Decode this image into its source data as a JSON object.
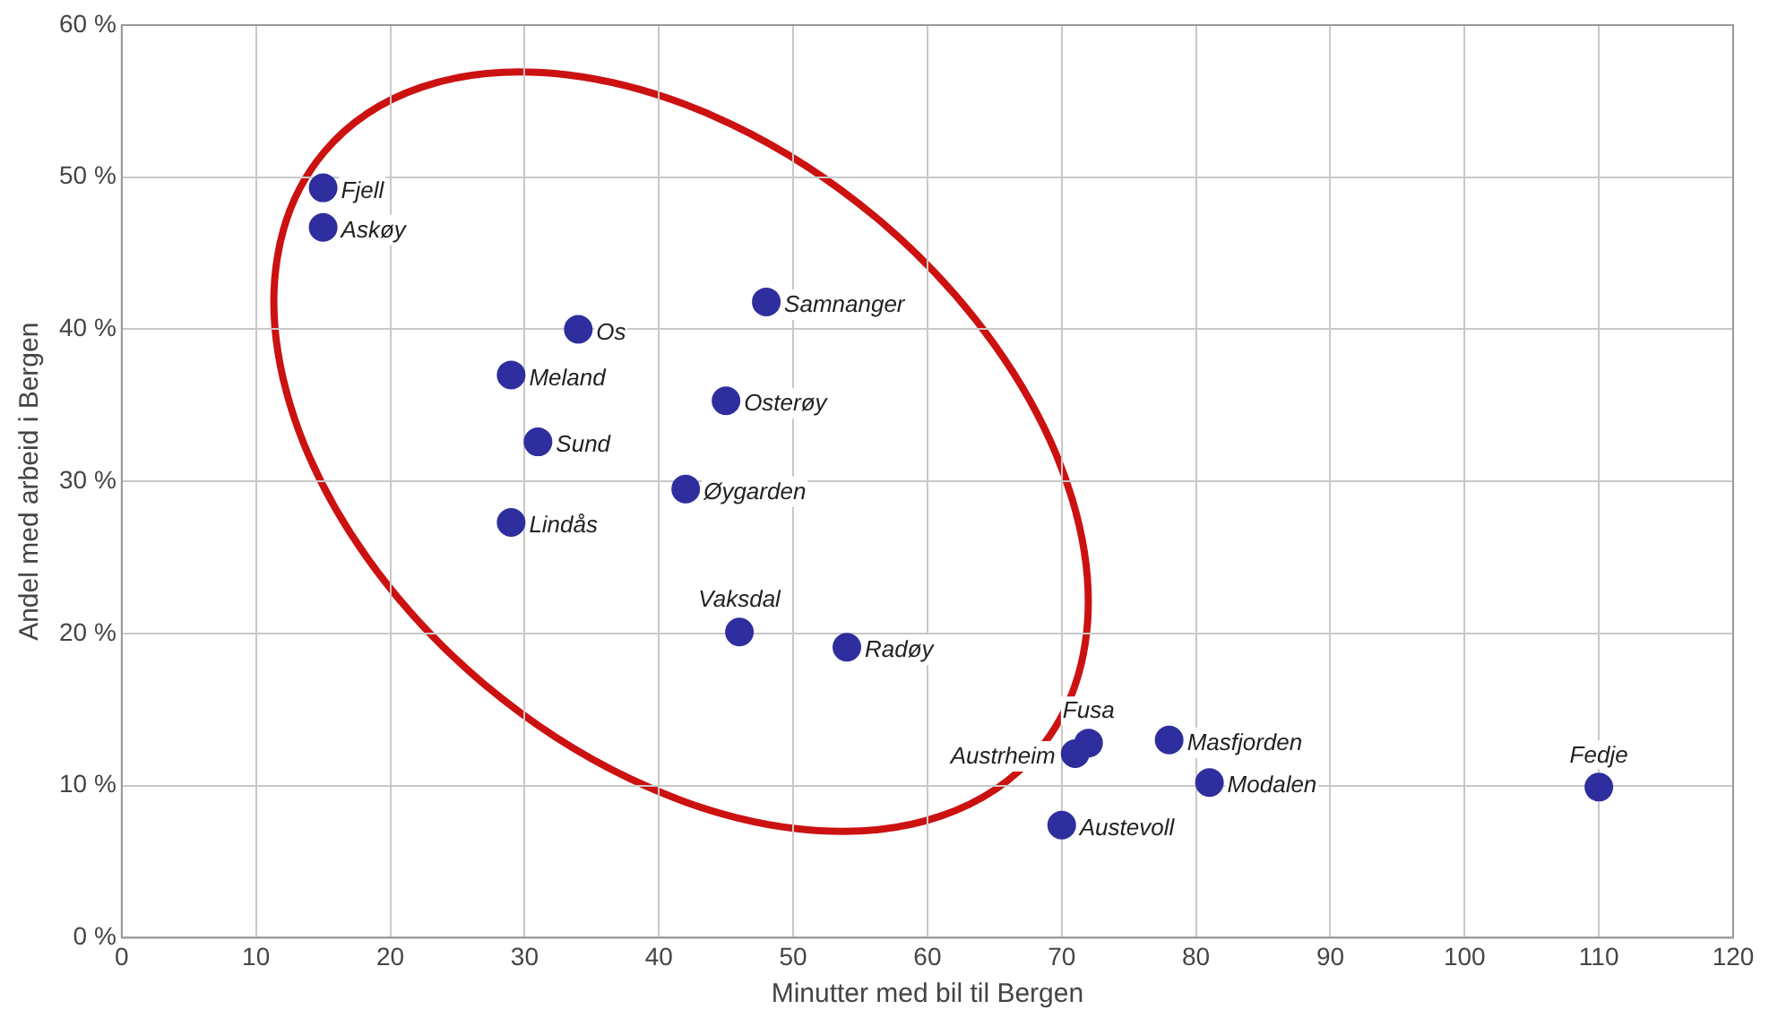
{
  "chart_data": {
    "type": "scatter",
    "xlabel": "Minutter med bil til Bergen",
    "ylabel": "Andel med arbeid i Bergen",
    "x": [
      15,
      15,
      34,
      48,
      29,
      45,
      31,
      42,
      29,
      46,
      54,
      72,
      71,
      78,
      81,
      110,
      70
    ],
    "series": [
      {
        "color": "#2e2e9e",
        "values": [
          49.3,
          46.7,
          40.0,
          41.8,
          37.0,
          35.3,
          32.6,
          29.5,
          27.3,
          20.1,
          19.1,
          12.8,
          12.1,
          13.0,
          10.2,
          9.9,
          7.4
        ]
      }
    ],
    "annotations": [
      {
        "text": "Fjell",
        "x": 15,
        "y": 49.3
      },
      {
        "text": "Askøy",
        "x": 15,
        "y": 46.7
      },
      {
        "text": "Os",
        "x": 34,
        "y": 40.0
      },
      {
        "text": "Samnanger",
        "x": 48,
        "y": 41.8
      },
      {
        "text": "Meland",
        "x": 29,
        "y": 37.0
      },
      {
        "text": "Osterøy",
        "x": 45,
        "y": 35.3
      },
      {
        "text": "Sund",
        "x": 31,
        "y": 32.6
      },
      {
        "text": "Øygarden",
        "x": 42,
        "y": 29.5
      },
      {
        "text": "Lindås",
        "x": 29,
        "y": 27.3
      },
      {
        "text": "Vaksdal",
        "x": 46,
        "y": 20.1
      },
      {
        "text": "Radøy",
        "x": 54,
        "y": 19.1
      },
      {
        "text": "Fusa",
        "x": 72,
        "y": 12.8
      },
      {
        "text": "Austrheim",
        "x": 71,
        "y": 12.1
      },
      {
        "text": "Masfjorden",
        "x": 78,
        "y": 13.0
      },
      {
        "text": "Modalen",
        "x": 81,
        "y": 10.2
      },
      {
        "text": "Fedje",
        "x": 110,
        "y": 9.9
      },
      {
        "text": "Austevoll",
        "x": 70,
        "y": 7.4
      }
    ],
    "xlim": [
      0,
      120
    ],
    "xticks": [
      0,
      10,
      20,
      30,
      40,
      50,
      60,
      70,
      80,
      90,
      100,
      110,
      120
    ],
    "ylim": [
      0,
      60
    ],
    "yticks": [
      {
        "value": 0,
        "label": "0 %"
      },
      {
        "value": 10,
        "label": "10 %"
      },
      {
        "value": 20,
        "label": "20 %"
      },
      {
        "value": 30,
        "label": "30 %"
      },
      {
        "value": 40,
        "label": "40 %"
      },
      {
        "value": 50,
        "label": "50 %"
      },
      {
        "value": 60,
        "label": "60 %"
      }
    ],
    "grid": true,
    "legend": false,
    "marker": "circle"
  }
}
